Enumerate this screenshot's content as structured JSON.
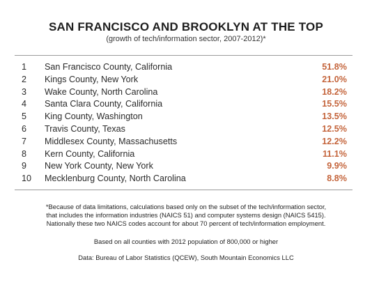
{
  "chart_data": {
    "type": "table",
    "title": "SAN FRANCISCO AND BROOKLYN AT THE TOP",
    "subtitle": "(growth of tech/information sector, 2007-2012)*",
    "colors": {
      "value": "#c4643b",
      "rule": "#9a9a9a"
    },
    "rows": [
      {
        "rank": "1",
        "county": "San Francisco County, California",
        "value": 51.8,
        "label": "51.8%"
      },
      {
        "rank": "2",
        "county": "Kings County, New York",
        "value": 21.0,
        "label": "21.0%"
      },
      {
        "rank": "3",
        "county": "Wake County, North Carolina",
        "value": 18.2,
        "label": "18.2%"
      },
      {
        "rank": "4",
        "county": "Santa Clara County, California",
        "value": 15.5,
        "label": "15.5%"
      },
      {
        "rank": "5",
        "county": "King County, Washington",
        "value": 13.5,
        "label": "13.5%"
      },
      {
        "rank": "6",
        "county": "Travis County, Texas",
        "value": 12.5,
        "label": "12.5%"
      },
      {
        "rank": "7",
        "county": "Middlesex County, Massachusetts",
        "value": 12.2,
        "label": "12.2%"
      },
      {
        "rank": "8",
        "county": "Kern County, California",
        "value": 11.1,
        "label": "11.1%"
      },
      {
        "rank": "9",
        "county": "New York County, New York",
        "value": 9.9,
        "label": "9.9%"
      },
      {
        "rank": "10",
        "county": "Mecklenburg County, North Carolina",
        "value": 8.8,
        "label": "8.8%"
      }
    ],
    "footnote": [
      "*Because of data limitations, calculations based only on the subset of the tech/information sector,",
      "that includes the information industries (NAICS 51) and computer systems design (NAICS 5415).",
      "Nationally these two NAICS codes account for about 70 percent of tech/information employment."
    ],
    "basis_note": "Based on all counties with 2012 population of 800,000 or higher",
    "source": "Data: Bureau of Labor Statistics (QCEW), South Mountain Economics LLC"
  }
}
